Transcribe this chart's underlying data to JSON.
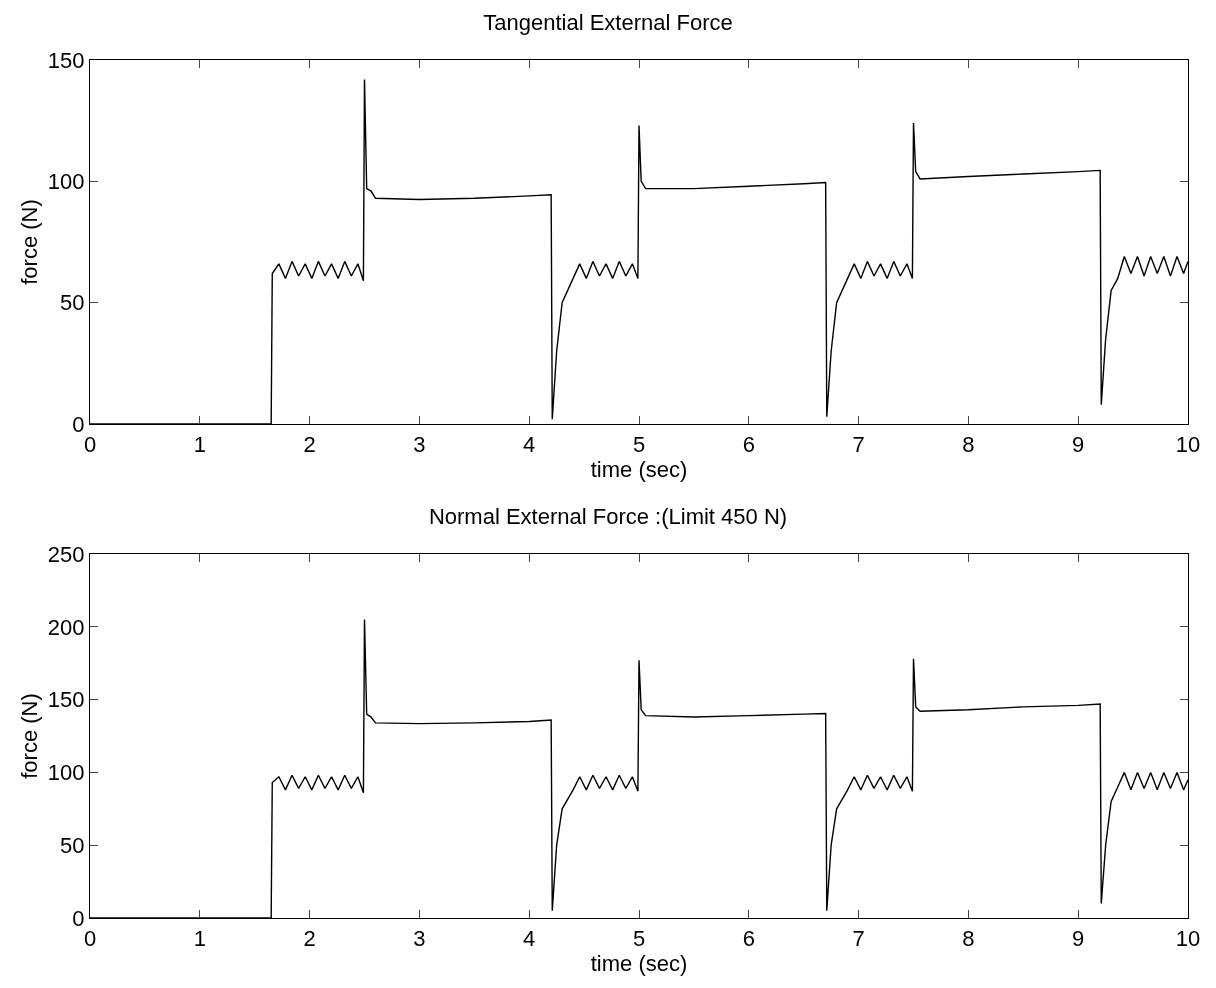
{
  "chart_data": [
    {
      "type": "line",
      "title": "Tangential External Force",
      "xlabel": "time (sec)",
      "ylabel": "force (N)",
      "xlim": [
        0,
        10
      ],
      "xticks": [
        0,
        1,
        2,
        3,
        4,
        5,
        6,
        7,
        8,
        9,
        10
      ],
      "ylim": [
        0,
        150
      ],
      "yticks": [
        0,
        50,
        100,
        150
      ],
      "grid": false,
      "series": [
        {
          "color": "#000000",
          "x": [
            0,
            1.65,
            1.66,
            1.72,
            1.78,
            1.84,
            1.9,
            1.96,
            2.02,
            2.08,
            2.14,
            2.2,
            2.26,
            2.32,
            2.38,
            2.44,
            2.49,
            2.5,
            2.52,
            2.56,
            2.6,
            3.0,
            3.5,
            4.0,
            4.2,
            4.21,
            4.25,
            4.3,
            4.4,
            4.46,
            4.52,
            4.58,
            4.64,
            4.7,
            4.76,
            4.82,
            4.88,
            4.94,
            4.99,
            5.0,
            5.02,
            5.06,
            5.5,
            6.0,
            6.5,
            6.7,
            6.71,
            6.75,
            6.8,
            6.9,
            6.96,
            7.02,
            7.08,
            7.14,
            7.2,
            7.26,
            7.32,
            7.38,
            7.44,
            7.49,
            7.5,
            7.52,
            7.56,
            8.0,
            8.5,
            9.0,
            9.2,
            9.21,
            9.25,
            9.3,
            9.36,
            9.42,
            9.48,
            9.54,
            9.6,
            9.66,
            9.72,
            9.78,
            9.84,
            9.9,
            9.96,
            10
          ],
          "values": [
            0,
            0,
            62,
            66,
            60,
            67,
            61,
            66,
            60,
            67,
            61,
            66,
            60,
            67,
            61,
            66,
            59,
            142,
            97,
            96,
            93,
            92.5,
            93,
            94,
            94.5,
            2,
            30,
            50,
            60,
            66,
            60,
            67,
            61,
            66,
            60,
            67,
            61,
            66,
            60,
            123,
            100,
            97,
            97,
            98,
            99,
            99.5,
            3,
            30,
            50,
            60,
            66,
            60,
            67,
            61,
            66,
            60,
            67,
            61,
            66,
            60,
            124,
            104,
            101,
            102,
            103,
            104,
            104.5,
            8,
            35,
            55,
            60,
            69,
            62,
            69,
            61,
            69,
            62,
            69,
            61,
            69,
            62,
            67
          ]
        }
      ]
    },
    {
      "type": "line",
      "title": "Normal External Force :(Limit 450 N)",
      "xlabel": "time (sec)",
      "ylabel": "force (N)",
      "xlim": [
        0,
        10
      ],
      "xticks": [
        0,
        1,
        2,
        3,
        4,
        5,
        6,
        7,
        8,
        9,
        10
      ],
      "ylim": [
        0,
        250
      ],
      "yticks": [
        0,
        50,
        100,
        150,
        200,
        250
      ],
      "grid": false,
      "series": [
        {
          "color": "#000000",
          "x": [
            0,
            1.65,
            1.66,
            1.72,
            1.78,
            1.84,
            1.9,
            1.96,
            2.02,
            2.08,
            2.14,
            2.2,
            2.26,
            2.32,
            2.38,
            2.44,
            2.49,
            2.5,
            2.52,
            2.56,
            2.6,
            3.0,
            3.5,
            4.0,
            4.2,
            4.21,
            4.25,
            4.3,
            4.4,
            4.46,
            4.52,
            4.58,
            4.64,
            4.7,
            4.76,
            4.82,
            4.88,
            4.94,
            4.99,
            5.0,
            5.02,
            5.06,
            5.5,
            6.0,
            6.5,
            6.7,
            6.71,
            6.75,
            6.8,
            6.9,
            6.96,
            7.02,
            7.08,
            7.14,
            7.2,
            7.26,
            7.32,
            7.38,
            7.44,
            7.49,
            7.5,
            7.52,
            7.56,
            8.0,
            8.5,
            9.0,
            9.2,
            9.21,
            9.25,
            9.3,
            9.36,
            9.42,
            9.48,
            9.54,
            9.6,
            9.66,
            9.72,
            9.78,
            9.84,
            9.9,
            9.96,
            10
          ],
          "values": [
            0,
            0,
            93,
            97,
            88,
            98,
            89,
            97,
            88,
            98,
            89,
            97,
            88,
            98,
            89,
            97,
            86,
            205,
            140,
            138,
            134,
            133.5,
            134,
            135,
            136,
            5,
            50,
            75,
            88,
            97,
            88,
            98,
            89,
            97,
            88,
            98,
            89,
            97,
            87,
            177,
            143,
            139,
            138,
            139,
            140,
            140.5,
            5,
            50,
            75,
            88,
            97,
            88,
            98,
            89,
            97,
            88,
            98,
            89,
            97,
            87,
            178,
            145,
            142,
            143,
            145,
            146,
            147,
            10,
            50,
            80,
            90,
            100,
            88,
            100,
            89,
            100,
            88,
            100,
            89,
            100,
            88,
            95
          ]
        }
      ]
    }
  ]
}
